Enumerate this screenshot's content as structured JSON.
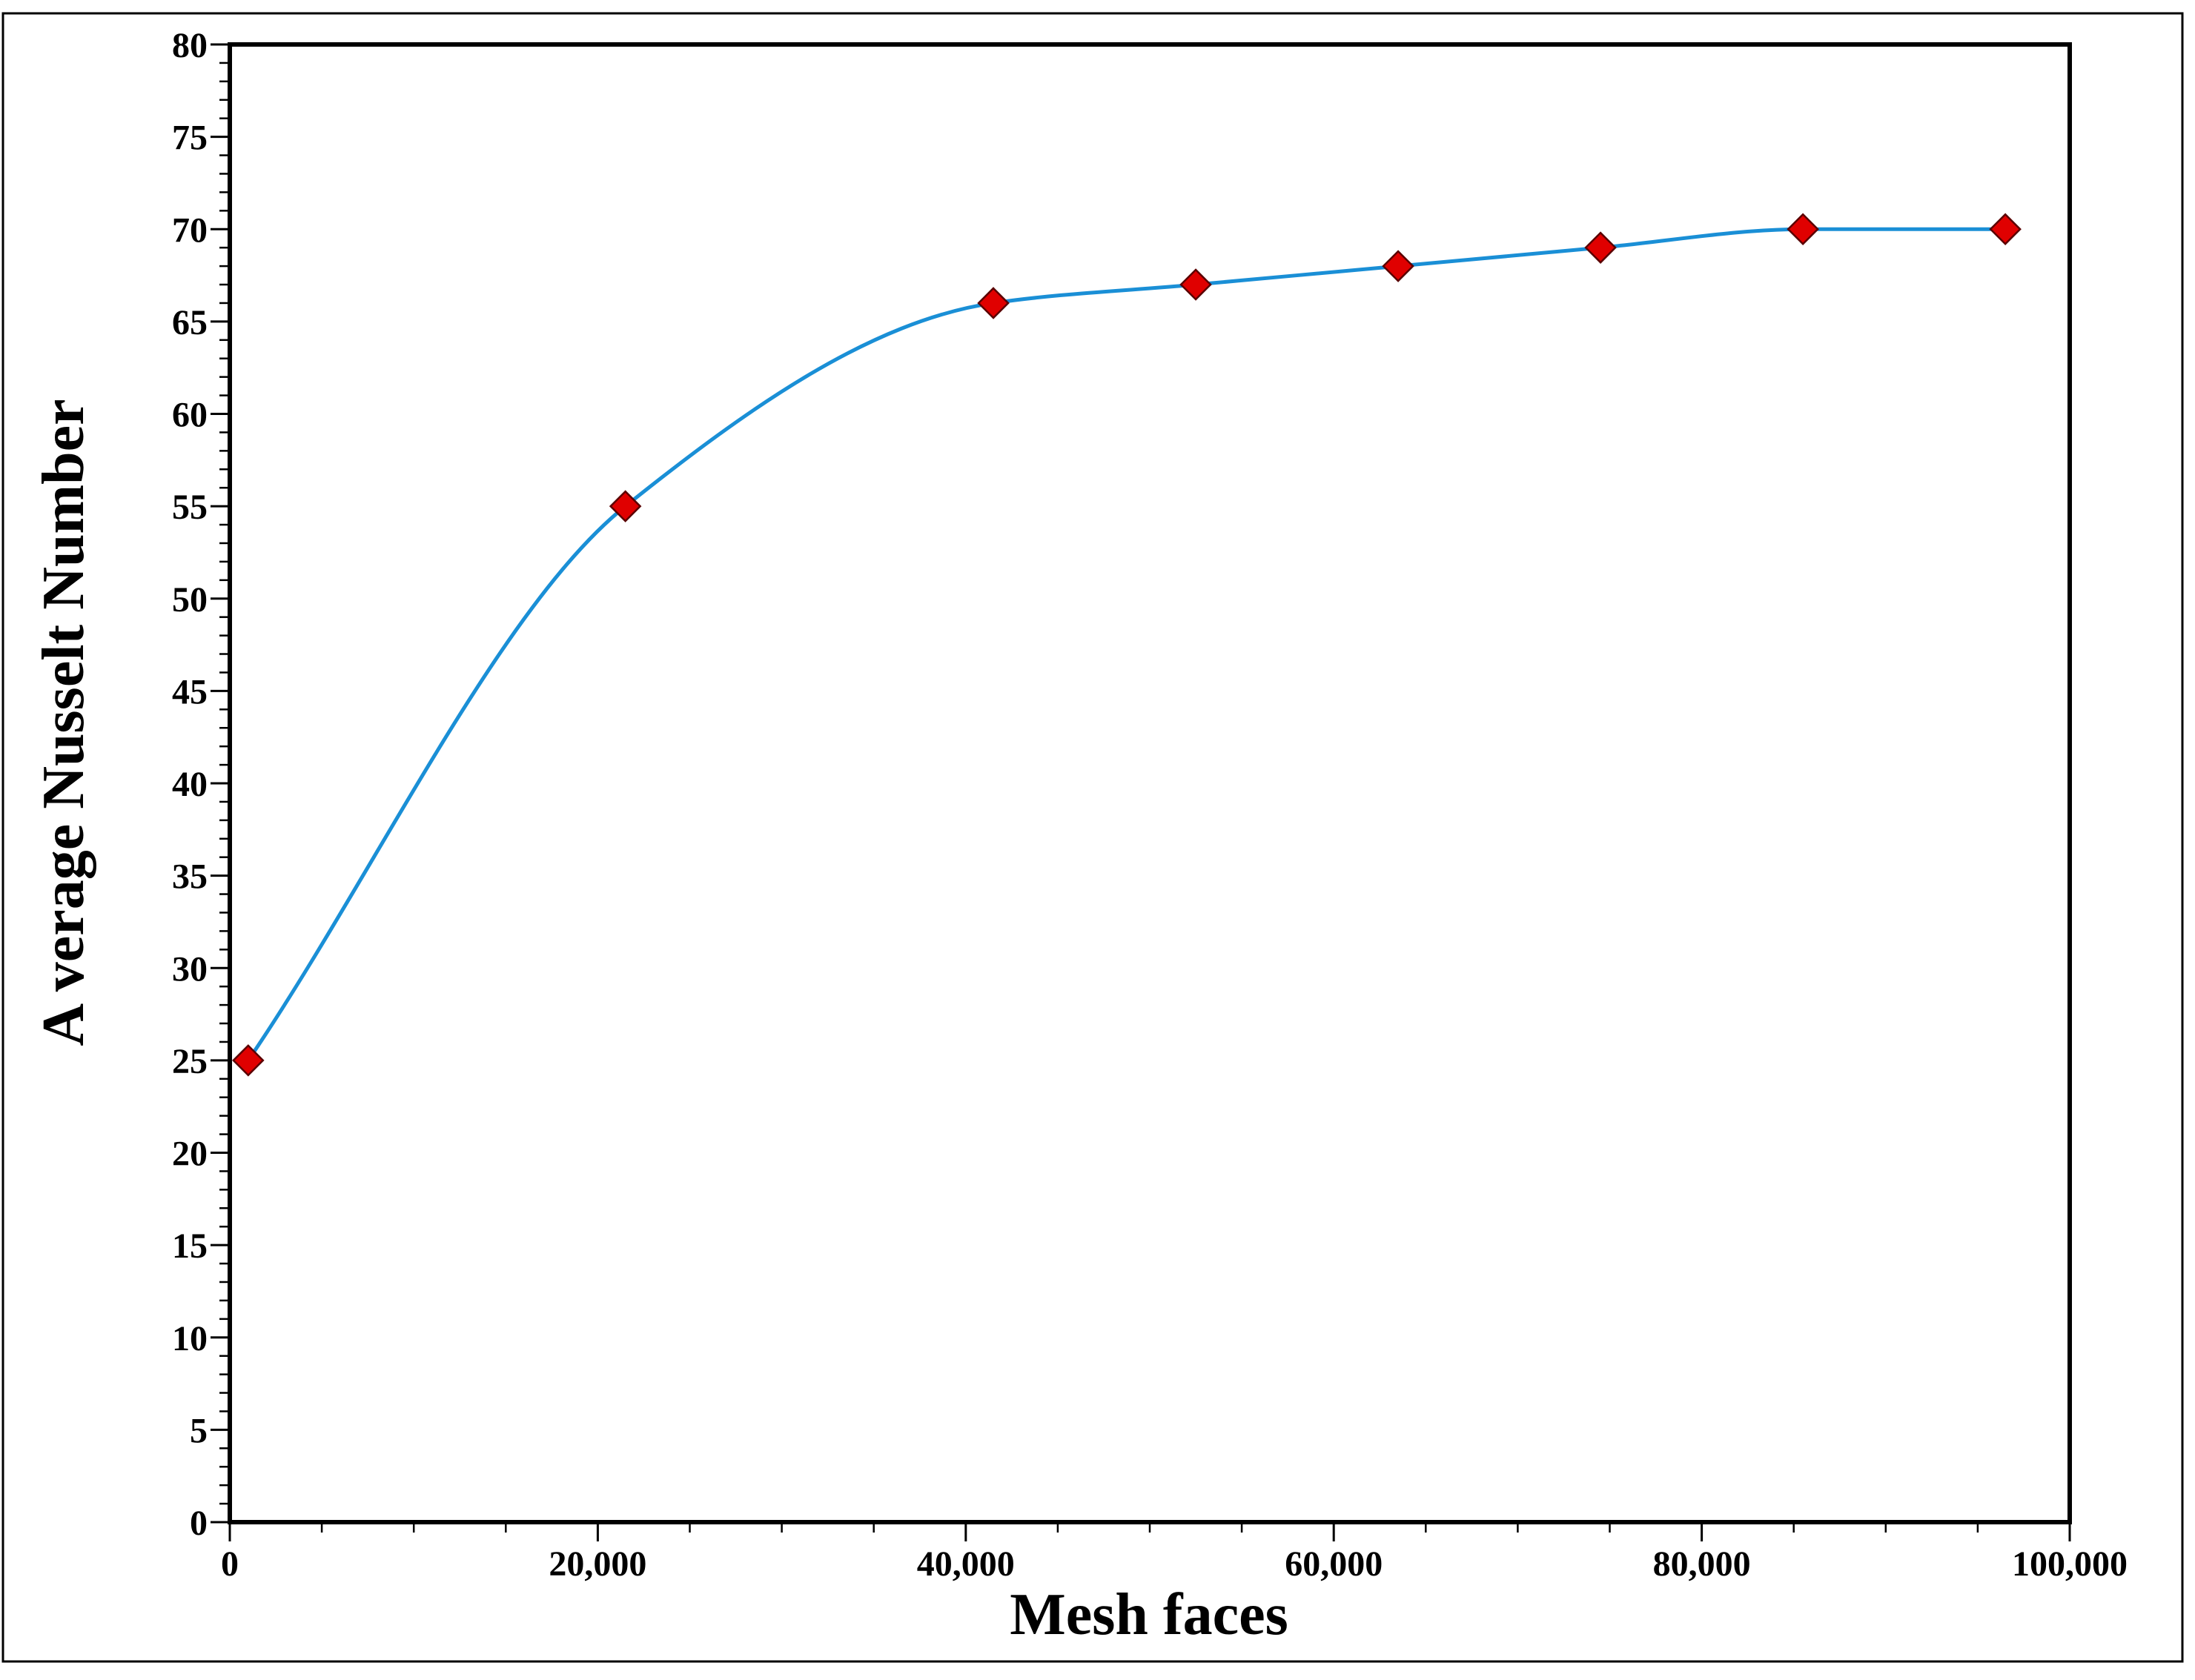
{
  "chart_data": {
    "type": "line",
    "title": "",
    "xlabel": "Mesh faces",
    "ylabel": "A verage Nusselt Number",
    "xlim": [
      0,
      100000
    ],
    "ylim": [
      0,
      80
    ],
    "x_tick_values": [
      0,
      20000,
      40000,
      60000,
      80000,
      100000
    ],
    "x_tick_labels": [
      "0",
      "20,000",
      "40,000",
      "60,000",
      "80,000",
      "100,000"
    ],
    "y_tick_values": [
      0,
      5,
      10,
      15,
      20,
      25,
      30,
      35,
      40,
      45,
      50,
      55,
      60,
      65,
      70,
      75,
      80
    ],
    "y_tick_labels": [
      "0",
      "5",
      "10",
      "15",
      "20",
      "25",
      "30",
      "35",
      "40",
      "45",
      "50",
      "55",
      "60",
      "65",
      "70",
      "75",
      "80"
    ],
    "x_minor_step": 5000,
    "y_minor_step": 1,
    "grid": false,
    "legend": "none",
    "series": [
      {
        "x": [
          1000,
          21500,
          41500,
          52500,
          63500,
          74500,
          85500,
          96500
        ],
        "y": [
          25,
          55,
          66,
          67,
          68,
          69,
          70,
          70
        ],
        "line_color": "#1a8fd6",
        "marker": "diamond",
        "marker_color": "#e00000"
      }
    ]
  }
}
